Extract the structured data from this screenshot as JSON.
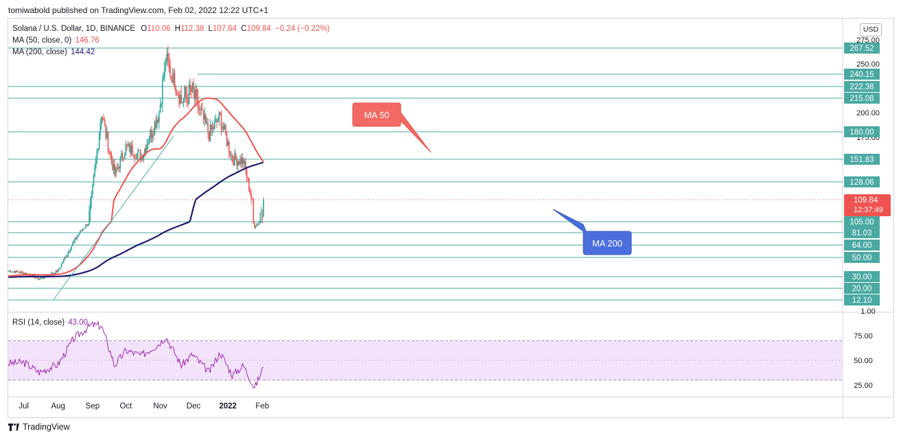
{
  "header": {
    "published": "tomiwabold published on TradingView.com, Feb 02, 2022 12:22 UTC+1"
  },
  "legend": {
    "symbol": "Solana / U.S. Dollar, 1D, BINANCE",
    "o_label": "O",
    "o": "110.06",
    "h_label": "H",
    "h": "112.38",
    "l_label": "L",
    "l": "107.64",
    "c_label": "C",
    "c": "109.84",
    "change": "−0.24 (−0.22%)",
    "ma50_label": "MA (50, close, 0)",
    "ma50_value": "146.76",
    "ma200_label": "MA (200, close)",
    "ma200_value": "144.42",
    "rsi_label": "RSI (14, close)",
    "rsi_value": "43.00"
  },
  "currency": "USD",
  "footer": {
    "brand": "TradingView"
  },
  "colors": {
    "up": "#26a69a",
    "down": "#ef5350",
    "ma50": "#ef5350",
    "ma200": "#1e1a6e",
    "rsi": "#9c27b0",
    "level": "#4aa9a2",
    "rsi_band": "#f2e3fb"
  },
  "chart_data": [
    {
      "type": "candlestick",
      "title": "Solana / U.S. Dollar, 1D, BINANCE",
      "x_labels": [
        "Jul",
        "Aug",
        "Sep",
        "Oct",
        "Nov",
        "Dec",
        "2022",
        "Feb"
      ],
      "y_tick_labels": [
        "275.00",
        "250.00",
        "200.00",
        "175.00",
        "1.00"
      ],
      "horizontal_levels": [
        267.52,
        240.15,
        222.38,
        215.08,
        180.0,
        151.83,
        128.06,
        105.0,
        81.03,
        64.0,
        50.0,
        30.0,
        20.0,
        12.1
      ],
      "last_price": "109.84",
      "countdown": "12:37:49",
      "annotations": [
        {
          "text": "MA 50",
          "color": "#f26a63"
        },
        {
          "text": "MA 200",
          "color": "#4a6fdc"
        }
      ],
      "ohlc_last": {
        "open": 110.06,
        "high": 112.38,
        "low": 107.64,
        "close": 109.84
      },
      "close_approx": [
        {
          "date": "2021-06-17",
          "close": 36
        },
        {
          "date": "2021-07-01",
          "close": 34
        },
        {
          "date": "2021-07-15",
          "close": 28
        },
        {
          "date": "2021-08-01",
          "close": 36
        },
        {
          "date": "2021-08-15",
          "close": 68
        },
        {
          "date": "2021-08-31",
          "close": 110
        },
        {
          "date": "2021-09-09",
          "close": 200
        },
        {
          "date": "2021-09-21",
          "close": 135
        },
        {
          "date": "2021-10-01",
          "close": 165
        },
        {
          "date": "2021-10-15",
          "close": 155
        },
        {
          "date": "2021-10-31",
          "close": 200
        },
        {
          "date": "2021-11-06",
          "close": 255
        },
        {
          "date": "2021-11-20",
          "close": 212
        },
        {
          "date": "2021-11-30",
          "close": 220
        },
        {
          "date": "2021-12-15",
          "close": 178
        },
        {
          "date": "2021-12-25",
          "close": 195
        },
        {
          "date": "2022-01-05",
          "close": 152
        },
        {
          "date": "2022-01-15",
          "close": 150
        },
        {
          "date": "2022-01-25",
          "close": 96
        },
        {
          "date": "2022-02-02",
          "close": 109.84
        }
      ],
      "series": [
        {
          "name": "MA (50, close, 0)",
          "last": 146.76
        },
        {
          "name": "MA (200, close)",
          "last": 144.42
        }
      ]
    },
    {
      "type": "line",
      "title": "RSI (14, close)",
      "y_tick_labels": [
        "75.00",
        "50.00",
        "25.00"
      ],
      "bands": [
        30,
        70
      ],
      "last": 43.0,
      "values_approx": [
        {
          "date": "2021-06-17",
          "rsi": 47
        },
        {
          "date": "2021-07-01",
          "rsi": 48
        },
        {
          "date": "2021-07-15",
          "rsi": 38
        },
        {
          "date": "2021-08-01",
          "rsi": 46
        },
        {
          "date": "2021-08-15",
          "rsi": 72
        },
        {
          "date": "2021-08-31",
          "rsi": 86
        },
        {
          "date": "2021-09-09",
          "rsi": 85
        },
        {
          "date": "2021-09-21",
          "rsi": 45
        },
        {
          "date": "2021-10-01",
          "rsi": 60
        },
        {
          "date": "2021-10-15",
          "rsi": 55
        },
        {
          "date": "2021-10-31",
          "rsi": 67
        },
        {
          "date": "2021-11-06",
          "rsi": 74
        },
        {
          "date": "2021-11-20",
          "rsi": 45
        },
        {
          "date": "2021-11-30",
          "rsi": 56
        },
        {
          "date": "2021-12-15",
          "rsi": 38
        },
        {
          "date": "2021-12-25",
          "rsi": 58
        },
        {
          "date": "2022-01-05",
          "rsi": 35
        },
        {
          "date": "2022-01-15",
          "rsi": 45
        },
        {
          "date": "2022-01-25",
          "rsi": 22
        },
        {
          "date": "2022-02-02",
          "rsi": 43
        }
      ]
    }
  ]
}
